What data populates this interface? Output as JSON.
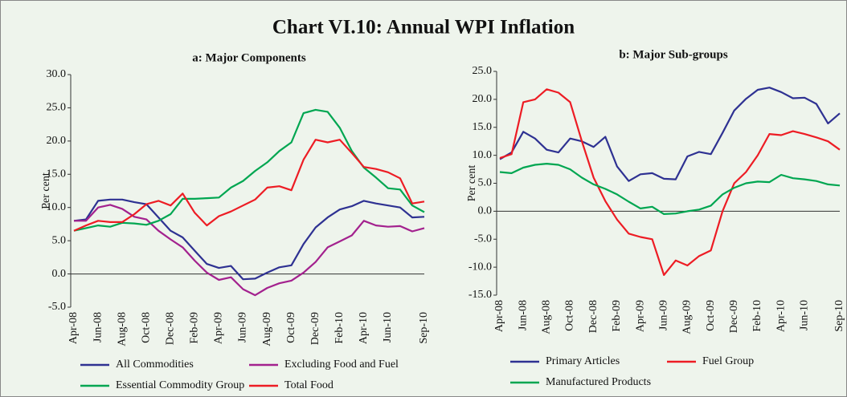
{
  "title": "Chart VI.10: Annual WPI Inflation",
  "chart_data": [
    {
      "type": "line",
      "title": "a: Major Components",
      "ylabel": "Per cent",
      "categories": [
        "Apr-08",
        null,
        "Jun-08",
        null,
        "Aug-08",
        null,
        "Oct-08",
        null,
        "Dec-08",
        null,
        "Feb-09",
        null,
        "Apr-09",
        null,
        "Jun-09",
        null,
        "Aug-09",
        null,
        "Oct-09",
        null,
        "Dec-09",
        null,
        "Feb-10",
        null,
        "Apr-10",
        null,
        "Jun-10",
        null,
        null,
        "Sep-10"
      ],
      "ylim": [
        -5,
        30
      ],
      "yticks": [
        {
          "value": -5,
          "label": "-5.0"
        },
        {
          "value": 0,
          "label": "0.0"
        },
        {
          "value": 5,
          "label": "5.0"
        },
        {
          "value": 10,
          "label": "10.0"
        },
        {
          "value": 15,
          "label": "15.0"
        },
        {
          "value": 20,
          "label": "20.0"
        },
        {
          "value": 25,
          "label": "25.0"
        },
        {
          "value": 30,
          "label": "30.0"
        }
      ],
      "series": [
        {
          "name": "All Commodities",
          "color": "#2e3192",
          "values": [
            8,
            8.2,
            11,
            11.2,
            11.2,
            10.8,
            10.5,
            8.5,
            6.5,
            5.5,
            3.5,
            1.5,
            0.9,
            1.2,
            -0.8,
            -0.7,
            0.2,
            1.0,
            1.3,
            4.5,
            7,
            8.5,
            9.7,
            10.2,
            11,
            10.6,
            10.3,
            10,
            8.5,
            8.6
          ]
        },
        {
          "name": "Excluding Food and Fuel",
          "color": "#a3218e",
          "values": [
            8,
            8,
            10,
            10.4,
            9.8,
            8.6,
            8.2,
            6.5,
            5.2,
            4,
            2,
            0.2,
            -0.9,
            -0.5,
            -2.3,
            -3.2,
            -2.1,
            -1.4,
            -1.0,
            0.2,
            1.8,
            4,
            4.9,
            5.8,
            8,
            7.3,
            7.1,
            7.2,
            6.4,
            6.9
          ]
        },
        {
          "name": "Essential Commodity Group",
          "color": "#00a651",
          "values": [
            6.5,
            6.9,
            7.3,
            7.1,
            7.7,
            7.6,
            7.4,
            8,
            9,
            11.3,
            11.3,
            11.4,
            11.5,
            13,
            14,
            15.5,
            16.8,
            18.5,
            19.8,
            24.2,
            24.7,
            24.4,
            22,
            18.5,
            16,
            14.5,
            12.9,
            12.7,
            10.3,
            9.3
          ]
        },
        {
          "name": "Total Food",
          "color": "#ed1c24",
          "values": [
            6.5,
            7.3,
            8,
            7.8,
            7.8,
            9,
            10.5,
            11,
            10.3,
            12.1,
            9.2,
            7.3,
            8.7,
            9.4,
            10.3,
            11.2,
            13,
            13.2,
            12.6,
            17.2,
            20.2,
            19.8,
            20.2,
            18.2,
            16.1,
            15.8,
            15.3,
            14.4,
            10.6,
            10.9
          ]
        }
      ]
    },
    {
      "type": "line",
      "title": "b: Major Sub-groups",
      "ylabel": "Per cent",
      "categories": [
        "Apr-08",
        null,
        "Jun-08",
        null,
        "Aug-08",
        null,
        "Oct-08",
        null,
        "Dec-08",
        null,
        "Feb-09",
        null,
        "Apr-09",
        null,
        "Jun-09",
        null,
        "Aug-09",
        null,
        "Oct-09",
        null,
        "Dec-09",
        null,
        "Feb-10",
        null,
        "Apr-10",
        null,
        "Jun-10",
        null,
        null,
        "Sep-10"
      ],
      "ylim": [
        -15,
        25
      ],
      "yticks": [
        {
          "value": -15,
          "label": "-15.0"
        },
        {
          "value": -10,
          "label": "-10.0"
        },
        {
          "value": -5,
          "label": "-5.0"
        },
        {
          "value": 0,
          "label": "0.0"
        },
        {
          "value": 5,
          "label": "5.0"
        },
        {
          "value": 10,
          "label": "10.0"
        },
        {
          "value": 15,
          "label": "15.0"
        },
        {
          "value": 20,
          "label": "20.0"
        },
        {
          "value": 25,
          "label": "25.0"
        }
      ],
      "series": [
        {
          "name": "Primary Articles",
          "color": "#2e3192",
          "values": [
            9.3,
            10.5,
            14.2,
            13,
            11,
            10.5,
            13,
            12.5,
            11.5,
            13.3,
            8,
            5.4,
            6.6,
            6.8,
            5.8,
            5.7,
            9.8,
            10.6,
            10.2,
            14,
            18,
            20.1,
            21.7,
            22.1,
            21.3,
            20.2,
            20.3,
            19.2,
            15.7,
            17.5
          ]
        },
        {
          "name": "Fuel Group",
          "color": "#ed1c24",
          "values": [
            9.5,
            10.2,
            19.5,
            20,
            21.8,
            21.2,
            19.5,
            12.5,
            6,
            1.8,
            -1.5,
            -4,
            -4.6,
            -5,
            -11.4,
            -8.8,
            -9.7,
            -8,
            -7,
            0,
            5,
            7,
            10,
            13.8,
            13.6,
            14.3,
            13.8,
            13.2,
            12.5,
            11
          ]
        },
        {
          "name": "Manufactured Products",
          "color": "#00a651",
          "values": [
            7,
            6.8,
            7.8,
            8.3,
            8.5,
            8.3,
            7.5,
            6,
            4.8,
            4,
            3,
            1.7,
            0.5,
            0.8,
            -0.5,
            -0.4,
            0,
            0.3,
            1,
            3,
            4.2,
            5,
            5.3,
            5.2,
            6.5,
            5.9,
            5.7,
            5.4,
            4.8,
            4.6
          ]
        }
      ]
    }
  ]
}
